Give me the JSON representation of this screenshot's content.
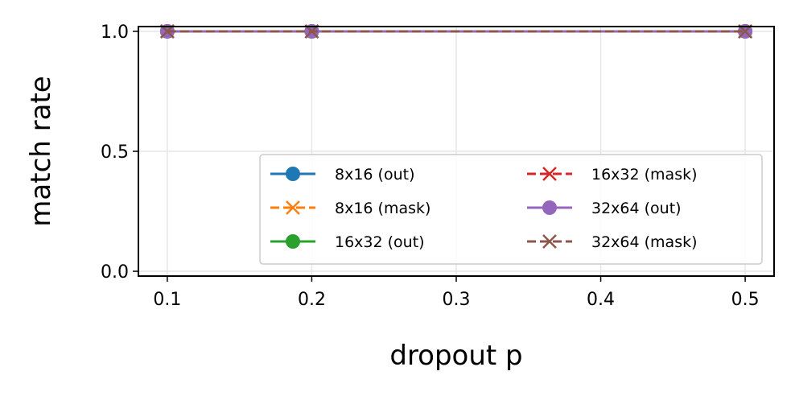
{
  "chart_data": {
    "type": "line",
    "title": "",
    "xlabel": "dropout p",
    "ylabel": "match rate",
    "xlim": [
      0.08,
      0.52
    ],
    "ylim": [
      -0.02,
      1.02
    ],
    "xticks": [
      0.1,
      0.2,
      0.3,
      0.4,
      0.5
    ],
    "xtick_labels": [
      "0.1",
      "0.2",
      "0.3",
      "0.4",
      "0.5"
    ],
    "yticks": [
      0.0,
      0.5,
      1.0
    ],
    "ytick_labels": [
      "0.0",
      "0.5",
      "1.0"
    ],
    "grid": true,
    "legend_placement": "lower-right",
    "legend_columns": 2,
    "x": [
      0.1,
      0.2,
      0.5
    ],
    "series": [
      {
        "name": "8x16 (out)",
        "values": [
          1.0,
          1.0,
          1.0
        ],
        "color": "#1f77b4",
        "marker": "circle",
        "linestyle": "solid"
      },
      {
        "name": "8x16 (mask)",
        "values": [
          1.0,
          1.0,
          1.0
        ],
        "color": "#ff7f0e",
        "marker": "x",
        "linestyle": "dashed"
      },
      {
        "name": "16x32 (out)",
        "values": [
          1.0,
          1.0,
          1.0
        ],
        "color": "#2ca02c",
        "marker": "circle",
        "linestyle": "solid"
      },
      {
        "name": "16x32 (mask)",
        "values": [
          1.0,
          1.0,
          1.0
        ],
        "color": "#d62728",
        "marker": "x",
        "linestyle": "dashed"
      },
      {
        "name": "32x64 (out)",
        "values": [
          1.0,
          1.0,
          1.0
        ],
        "color": "#9467bd",
        "marker": "circle",
        "linestyle": "solid"
      },
      {
        "name": "32x64 (mask)",
        "values": [
          1.0,
          1.0,
          1.0
        ],
        "color": "#8c564b",
        "marker": "x",
        "linestyle": "dashed"
      }
    ]
  }
}
